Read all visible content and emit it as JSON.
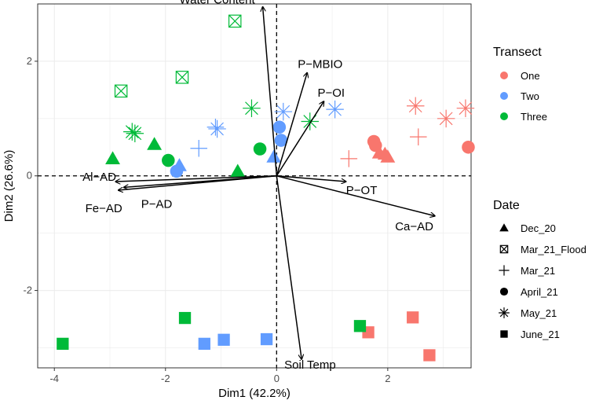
{
  "colors": {
    "One": "#F8766D",
    "Two": "#619CFF",
    "Three": "#00BA38"
  },
  "chart_data": {
    "type": "scatter",
    "subtype": "pca-biplot",
    "xlabel": "Dim1 (42.2%)",
    "ylabel": "Dim2 (26.6%)",
    "xlim": [
      -4.3,
      3.5
    ],
    "ylim": [
      -3.35,
      3.0
    ],
    "xticks": [
      -4,
      -2,
      0,
      2
    ],
    "yticks": [
      -2,
      0,
      2
    ],
    "xtick_labels": [
      "-4",
      "-2",
      "0",
      "2"
    ],
    "ytick_labels": [
      "-2",
      "0",
      "2"
    ],
    "grid": true,
    "legend_transect": {
      "title": "Transect",
      "entries": [
        "One",
        "Two",
        "Three"
      ]
    },
    "legend_date": {
      "title": "Date",
      "entries": [
        {
          "label": "Dec_20",
          "shape": "triangle"
        },
        {
          "label": "Mar_21_Flood",
          "shape": "square-x"
        },
        {
          "label": "Mar_21",
          "shape": "plus"
        },
        {
          "label": "April_21",
          "shape": "circle"
        },
        {
          "label": "May_21",
          "shape": "asterisk"
        },
        {
          "label": "June_21",
          "shape": "square"
        }
      ]
    },
    "arrows": [
      {
        "label": "Water Content",
        "x": -0.25,
        "y": 2.95
      },
      {
        "label": "P−MBIO",
        "x": 0.55,
        "y": 1.8
      },
      {
        "label": "P−OI",
        "x": 0.85,
        "y": 1.3
      },
      {
        "label": "P−OT",
        "x": 1.25,
        "y": -0.1
      },
      {
        "label": "Ca−AD",
        "x": 2.85,
        "y": -0.7
      },
      {
        "label": "Soil Temp",
        "x": 0.45,
        "y": -3.2
      },
      {
        "label": "Al−AD",
        "x": -2.9,
        "y": -0.1
      },
      {
        "label": "Fe−AD",
        "x": -2.85,
        "y": -0.25
      },
      {
        "label": "P−AD",
        "x": -2.75,
        "y": -0.2
      }
    ],
    "points": [
      {
        "transect": "One",
        "date": "Dec_20",
        "x": 1.85,
        "y": 0.4
      },
      {
        "transect": "One",
        "date": "Dec_20",
        "x": 1.95,
        "y": 0.38
      },
      {
        "transect": "One",
        "date": "Dec_20",
        "x": 2.0,
        "y": 0.33
      },
      {
        "transect": "One",
        "date": "Mar_21",
        "x": 1.3,
        "y": 0.3
      },
      {
        "transect": "One",
        "date": "Mar_21",
        "x": 2.55,
        "y": 0.68
      },
      {
        "transect": "One",
        "date": "April_21",
        "x": 1.75,
        "y": 0.6
      },
      {
        "transect": "One",
        "date": "April_21",
        "x": 1.78,
        "y": 0.53
      },
      {
        "transect": "One",
        "date": "April_21",
        "x": 3.45,
        "y": 0.5
      },
      {
        "transect": "One",
        "date": "May_21",
        "x": 2.5,
        "y": 1.22
      },
      {
        "transect": "One",
        "date": "May_21",
        "x": 3.05,
        "y": 1.0
      },
      {
        "transect": "One",
        "date": "May_21",
        "x": 3.4,
        "y": 1.18
      },
      {
        "transect": "One",
        "date": "June_21",
        "x": 1.65,
        "y": -2.73
      },
      {
        "transect": "One",
        "date": "June_21",
        "x": 2.45,
        "y": -2.47
      },
      {
        "transect": "One",
        "date": "June_21",
        "x": 2.75,
        "y": -3.13
      },
      {
        "transect": "Two",
        "date": "Dec_20",
        "x": -1.75,
        "y": 0.18
      },
      {
        "transect": "Two",
        "date": "Dec_20",
        "x": -0.05,
        "y": 0.33
      },
      {
        "transect": "Two",
        "date": "Mar_21",
        "x": -1.4,
        "y": 0.48
      },
      {
        "transect": "Two",
        "date": "Mar_21",
        "x": -1.1,
        "y": 0.85
      },
      {
        "transect": "Two",
        "date": "April_21",
        "x": -1.8,
        "y": 0.08
      },
      {
        "transect": "Two",
        "date": "April_21",
        "x": 0.05,
        "y": 0.85
      },
      {
        "transect": "Two",
        "date": "April_21",
        "x": 0.08,
        "y": 0.62
      },
      {
        "transect": "Two",
        "date": "May_21",
        "x": -1.07,
        "y": 0.82
      },
      {
        "transect": "Two",
        "date": "May_21",
        "x": 0.12,
        "y": 1.12
      },
      {
        "transect": "Two",
        "date": "May_21",
        "x": 1.05,
        "y": 1.16
      },
      {
        "transect": "Two",
        "date": "June_21",
        "x": -1.3,
        "y": -2.93
      },
      {
        "transect": "Two",
        "date": "June_21",
        "x": -0.95,
        "y": -2.86
      },
      {
        "transect": "Two",
        "date": "June_21",
        "x": -0.18,
        "y": -2.85
      },
      {
        "transect": "Three",
        "date": "Dec_20",
        "x": -2.95,
        "y": 0.3
      },
      {
        "transect": "Three",
        "date": "Dec_20",
        "x": -2.2,
        "y": 0.55
      },
      {
        "transect": "Three",
        "date": "Dec_20",
        "x": -0.7,
        "y": 0.08
      },
      {
        "transect": "Three",
        "date": "Mar_21_Flood",
        "x": -0.75,
        "y": 2.7
      },
      {
        "transect": "Three",
        "date": "Mar_21_Flood",
        "x": -2.8,
        "y": 1.48
      },
      {
        "transect": "Three",
        "date": "Mar_21_Flood",
        "x": -1.7,
        "y": 1.72
      },
      {
        "transect": "Three",
        "date": "April_21",
        "x": -1.95,
        "y": 0.27
      },
      {
        "transect": "Three",
        "date": "April_21",
        "x": -0.3,
        "y": 0.47
      },
      {
        "transect": "Three",
        "date": "May_21",
        "x": -2.6,
        "y": 0.77
      },
      {
        "transect": "Three",
        "date": "May_21",
        "x": -2.55,
        "y": 0.74
      },
      {
        "transect": "Three",
        "date": "May_21",
        "x": -0.45,
        "y": 1.18
      },
      {
        "transect": "Three",
        "date": "May_21",
        "x": 0.6,
        "y": 0.95
      },
      {
        "transect": "Three",
        "date": "June_21",
        "x": -3.85,
        "y": -2.93
      },
      {
        "transect": "Three",
        "date": "June_21",
        "x": -1.65,
        "y": -2.48
      },
      {
        "transect": "Three",
        "date": "June_21",
        "x": 1.5,
        "y": -2.62
      }
    ]
  }
}
